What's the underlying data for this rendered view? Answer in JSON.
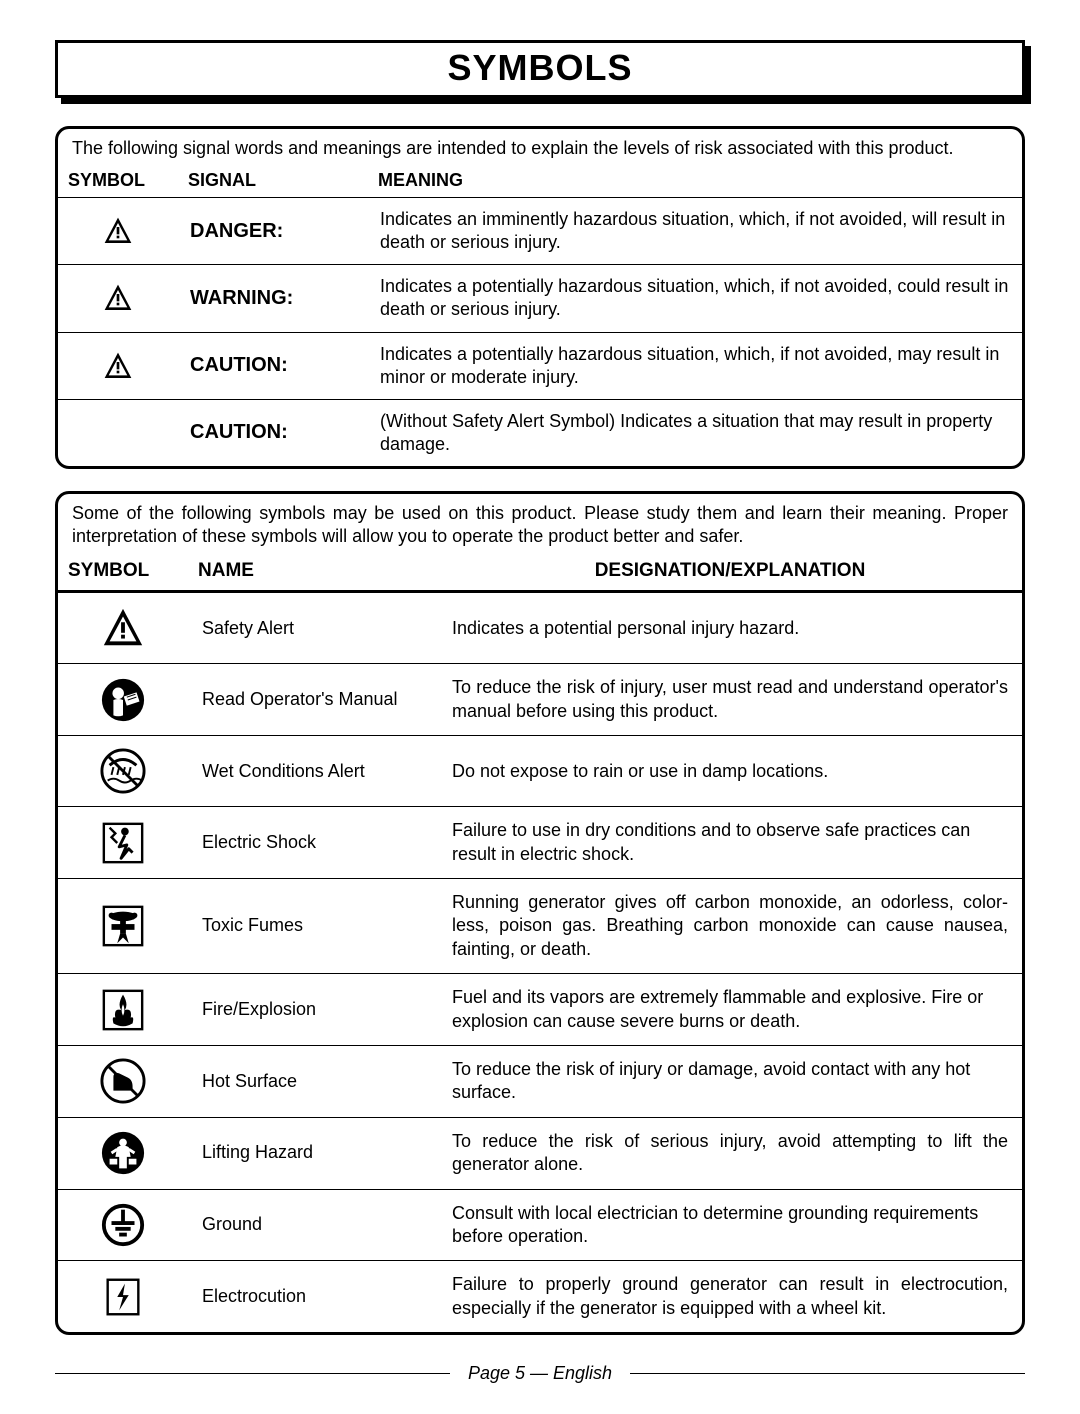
{
  "title": "SYMBOLS",
  "panel1": {
    "intro": "The following signal words and meanings are intended to explain the levels of risk associated with this product.",
    "headers": {
      "symbol": "SYMBOL",
      "signal": "SIGNAL",
      "meaning": "MEANING"
    },
    "rows": [
      {
        "icon": "alert",
        "signal": "DANGER:",
        "meaning": "Indicates an imminently hazardous situation, which, if not avoided, will result in death or serious injury."
      },
      {
        "icon": "alert",
        "signal": "WARNING:",
        "meaning": "Indicates a potentially hazardous situation, which, if not avoided, could result in death or serious injury."
      },
      {
        "icon": "alert",
        "signal": "CAUTION:",
        "meaning": "Indicates a potentially hazardous situation, which, if not avoided, may result in minor or moderate injury."
      },
      {
        "icon": "",
        "signal": "CAUTION:",
        "meaning": "(Without Safety Alert Symbol) Indicates a situation that may result in property damage."
      }
    ]
  },
  "panel2": {
    "intro": "Some of the following symbols may be used on this product. Please study them and learn their meaning. Proper interpretation of these symbols will allow you to operate the product better and safer.",
    "headers": {
      "symbol": "SYMBOL",
      "name": "NAME",
      "designation": "DESIGNATION/EXPLANATION"
    },
    "rows": [
      {
        "icon": "alert-big",
        "name": "Safety Alert",
        "explain": "Indicates a potential personal injury hazard."
      },
      {
        "icon": "manual",
        "name": "Read Operator's Manual",
        "explain": "To reduce the risk of injury, user must read and understand operator's manual before using this product.",
        "justify": true
      },
      {
        "icon": "wet",
        "name": "Wet Conditions Alert",
        "explain": "Do not expose to rain or use in damp locations."
      },
      {
        "icon": "shock",
        "name": "Electric Shock",
        "explain": "Failure to use in dry conditions and to observe safe practices can result in electric shock."
      },
      {
        "icon": "toxic",
        "name": "Toxic Fumes",
        "explain": "Running generator gives off carbon monoxide, an odorless, color-less, poison gas. Breathing carbon monoxide can cause nausea, fainting, or death.",
        "justify": true
      },
      {
        "icon": "fire",
        "name": "Fire/Explosion",
        "explain": "Fuel and its vapors are extremely flammable and explosive. Fire or explosion can cause severe burns or death."
      },
      {
        "icon": "hot",
        "name": "Hot Surface",
        "explain": "To reduce the risk of injury or damage, avoid contact with any hot surface."
      },
      {
        "icon": "lift",
        "name": "Lifting Hazard",
        "explain": "To reduce the risk of serious injury, avoid attempting to lift the generator alone.",
        "justify": true
      },
      {
        "icon": "ground",
        "name": "Ground",
        "explain": "Consult with local electrician to determine grounding requirements before operation."
      },
      {
        "icon": "electrocution",
        "name": "Electrocution",
        "explain": "Failure to properly ground generator can result in electrocution, especially if the generator is equipped with a wheel kit.",
        "justify": true
      }
    ]
  },
  "footer": "Page 5  —  English",
  "colors": {
    "ink": "#000000",
    "paper": "#ffffff"
  },
  "iconSize": {
    "small": 32,
    "large": 46
  }
}
